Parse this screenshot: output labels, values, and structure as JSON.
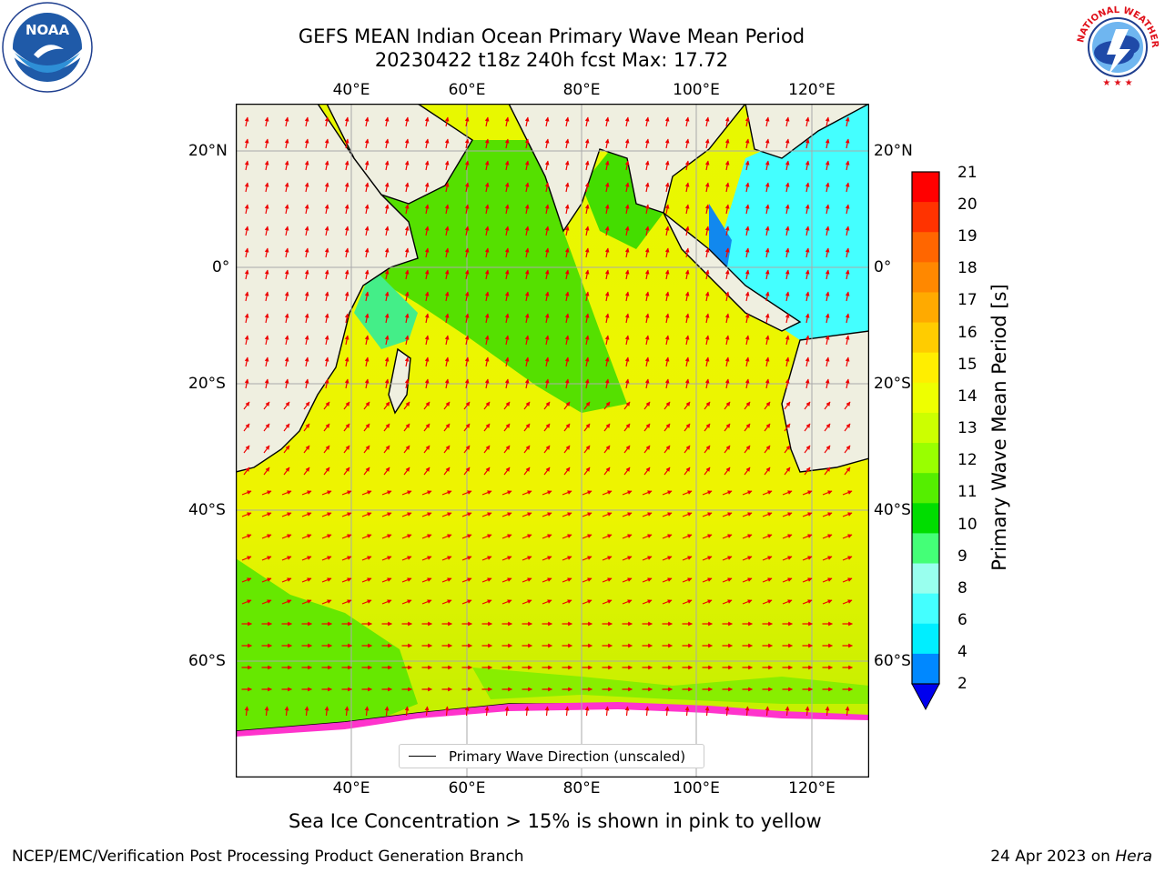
{
  "header": {
    "title_line1": "GEFS MEAN Indian Ocean Primary Wave Mean Period",
    "title_line2": "20230422 t18z 240h fcst   Max: 17.72"
  },
  "logos": {
    "noaa_text": "NOAA",
    "nws_text": "NATIONAL WEATHER SERVICE"
  },
  "map": {
    "lon_labels": [
      "40°E",
      "60°E",
      "80°E",
      "100°E",
      "120°E"
    ],
    "lat_labels": [
      "20°N",
      "0°",
      "20°S",
      "40°S",
      "60°S"
    ],
    "legend_label": "Primary Wave Direction (unscaled)",
    "colors": {
      "land": "#efefe0",
      "ice": "#ff33cc",
      "arrow": "#ee0000"
    }
  },
  "colorbar": {
    "label": "Primary Wave Mean Period [s]",
    "ticks": [
      "21",
      "20",
      "19",
      "18",
      "17",
      "16",
      "15",
      "14",
      "13",
      "12",
      "11",
      "10",
      "9",
      "8",
      "6",
      "4",
      "2"
    ],
    "colors": [
      "#ff0000",
      "#ff3300",
      "#ff6600",
      "#ff8800",
      "#ffaa00",
      "#ffcc00",
      "#ffee00",
      "#eeff00",
      "#ccff00",
      "#99ff00",
      "#55ee00",
      "#00dd00",
      "#44ff77",
      "#99ffee",
      "#44ffff",
      "#00eeff",
      "#0088ff",
      "#0000ee"
    ]
  },
  "caption": "Sea Ice Concentration > 15% is shown in pink to yellow",
  "footer": {
    "left": "NCEP/EMC/Verification Post Processing Product Generation Branch",
    "right_prefix": "24 Apr 2023 on ",
    "right_host": "Hera"
  }
}
